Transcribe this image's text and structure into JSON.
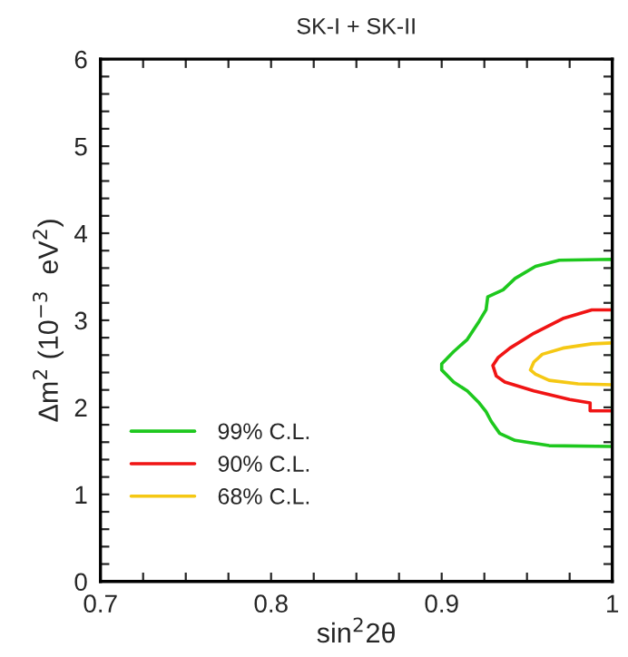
{
  "chart_data": {
    "type": "line",
    "title": "SK-I + SK-II",
    "xlabel": "sin$^{2}$2θ",
    "ylabel": "Δm$^{2}$ (10$^{−3}$  eV$^{2}$)",
    "xlim": [
      0.7,
      1
    ],
    "ylim": [
      0,
      6
    ],
    "xticks": [
      {
        "value": 0.7,
        "label": "0.7"
      },
      {
        "value": 0.725,
        "label": null
      },
      {
        "value": 0.75,
        "label": null
      },
      {
        "value": 0.775,
        "label": null
      },
      {
        "value": 0.8,
        "label": "0.8"
      },
      {
        "value": 0.825,
        "label": null
      },
      {
        "value": 0.85,
        "label": null
      },
      {
        "value": 0.875,
        "label": null
      },
      {
        "value": 0.9,
        "label": "0.9"
      },
      {
        "value": 0.925,
        "label": null
      },
      {
        "value": 0.95,
        "label": null
      },
      {
        "value": 0.975,
        "label": null
      },
      1
    ],
    "yticks": [
      0,
      {
        "value": 0.2,
        "label": null
      },
      {
        "value": 0.4,
        "label": null
      },
      {
        "value": 0.6,
        "label": null
      },
      {
        "value": 0.8,
        "label": null
      },
      1,
      {
        "value": 1.2,
        "label": null
      },
      {
        "value": 1.4,
        "label": null
      },
      {
        "value": 1.6,
        "label": null
      },
      {
        "value": 1.8,
        "label": null
      },
      2,
      {
        "value": 2.2,
        "label": null
      },
      {
        "value": 2.4,
        "label": null
      },
      {
        "value": 2.6,
        "label": null
      },
      {
        "value": 2.8,
        "label": null
      },
      3,
      {
        "value": 3.2,
        "label": null
      },
      {
        "value": 3.4,
        "label": null
      },
      {
        "value": 3.6,
        "label": null
      },
      {
        "value": 3.8,
        "label": null
      },
      4,
      {
        "value": 4.2,
        "label": null
      },
      {
        "value": 4.4,
        "label": null
      },
      {
        "value": 4.6,
        "label": null
      },
      {
        "value": 4.8,
        "label": null
      },
      5,
      {
        "value": 5.2,
        "label": null
      },
      {
        "value": 5.4,
        "label": null
      },
      {
        "value": 5.6,
        "label": null
      },
      {
        "value": 5.8,
        "label": null
      },
      6
    ],
    "legend": "bottom left",
    "grid": false,
    "marker": "none",
    "line_style": "solid",
    "series": [
      {
        "name": "99% C.L.",
        "color": "#1ec81e",
        "x": [
          1.0,
          1.0,
          0.969,
          0.955,
          0.943,
          0.936,
          0.927,
          0.926,
          0.922,
          0.915,
          0.907,
          0.9,
          0.9,
          0.907,
          0.915,
          0.922,
          0.926,
          0.929,
          0.934,
          0.943,
          0.963,
          1.0,
          1.0
        ],
        "values": [
          1.55,
          3.7,
          3.69,
          3.62,
          3.48,
          3.35,
          3.27,
          3.12,
          2.99,
          2.78,
          2.64,
          2.5,
          2.43,
          2.29,
          2.19,
          2.05,
          1.95,
          1.84,
          1.7,
          1.62,
          1.56,
          1.55,
          3.7
        ]
      },
      {
        "name": "90% C.L.",
        "color": "#f01414",
        "x": [
          1.0,
          0.988,
          0.971,
          0.954,
          0.94,
          0.933,
          0.93,
          0.932,
          0.937,
          0.954,
          0.975,
          0.987,
          0.987,
          1.0
        ],
        "values": [
          3.12,
          3.12,
          3.02,
          2.85,
          2.68,
          2.57,
          2.48,
          2.36,
          2.29,
          2.19,
          2.09,
          2.05,
          1.96,
          1.96
        ]
      },
      {
        "name": "68% C.L.",
        "color": "#f5c814",
        "x": [
          1.0,
          0.988,
          0.971,
          0.959,
          0.954,
          0.952,
          0.955,
          0.963,
          0.98,
          1.0
        ],
        "values": [
          2.74,
          2.73,
          2.68,
          2.61,
          2.52,
          2.43,
          2.38,
          2.31,
          2.27,
          2.26
        ]
      }
    ]
  }
}
